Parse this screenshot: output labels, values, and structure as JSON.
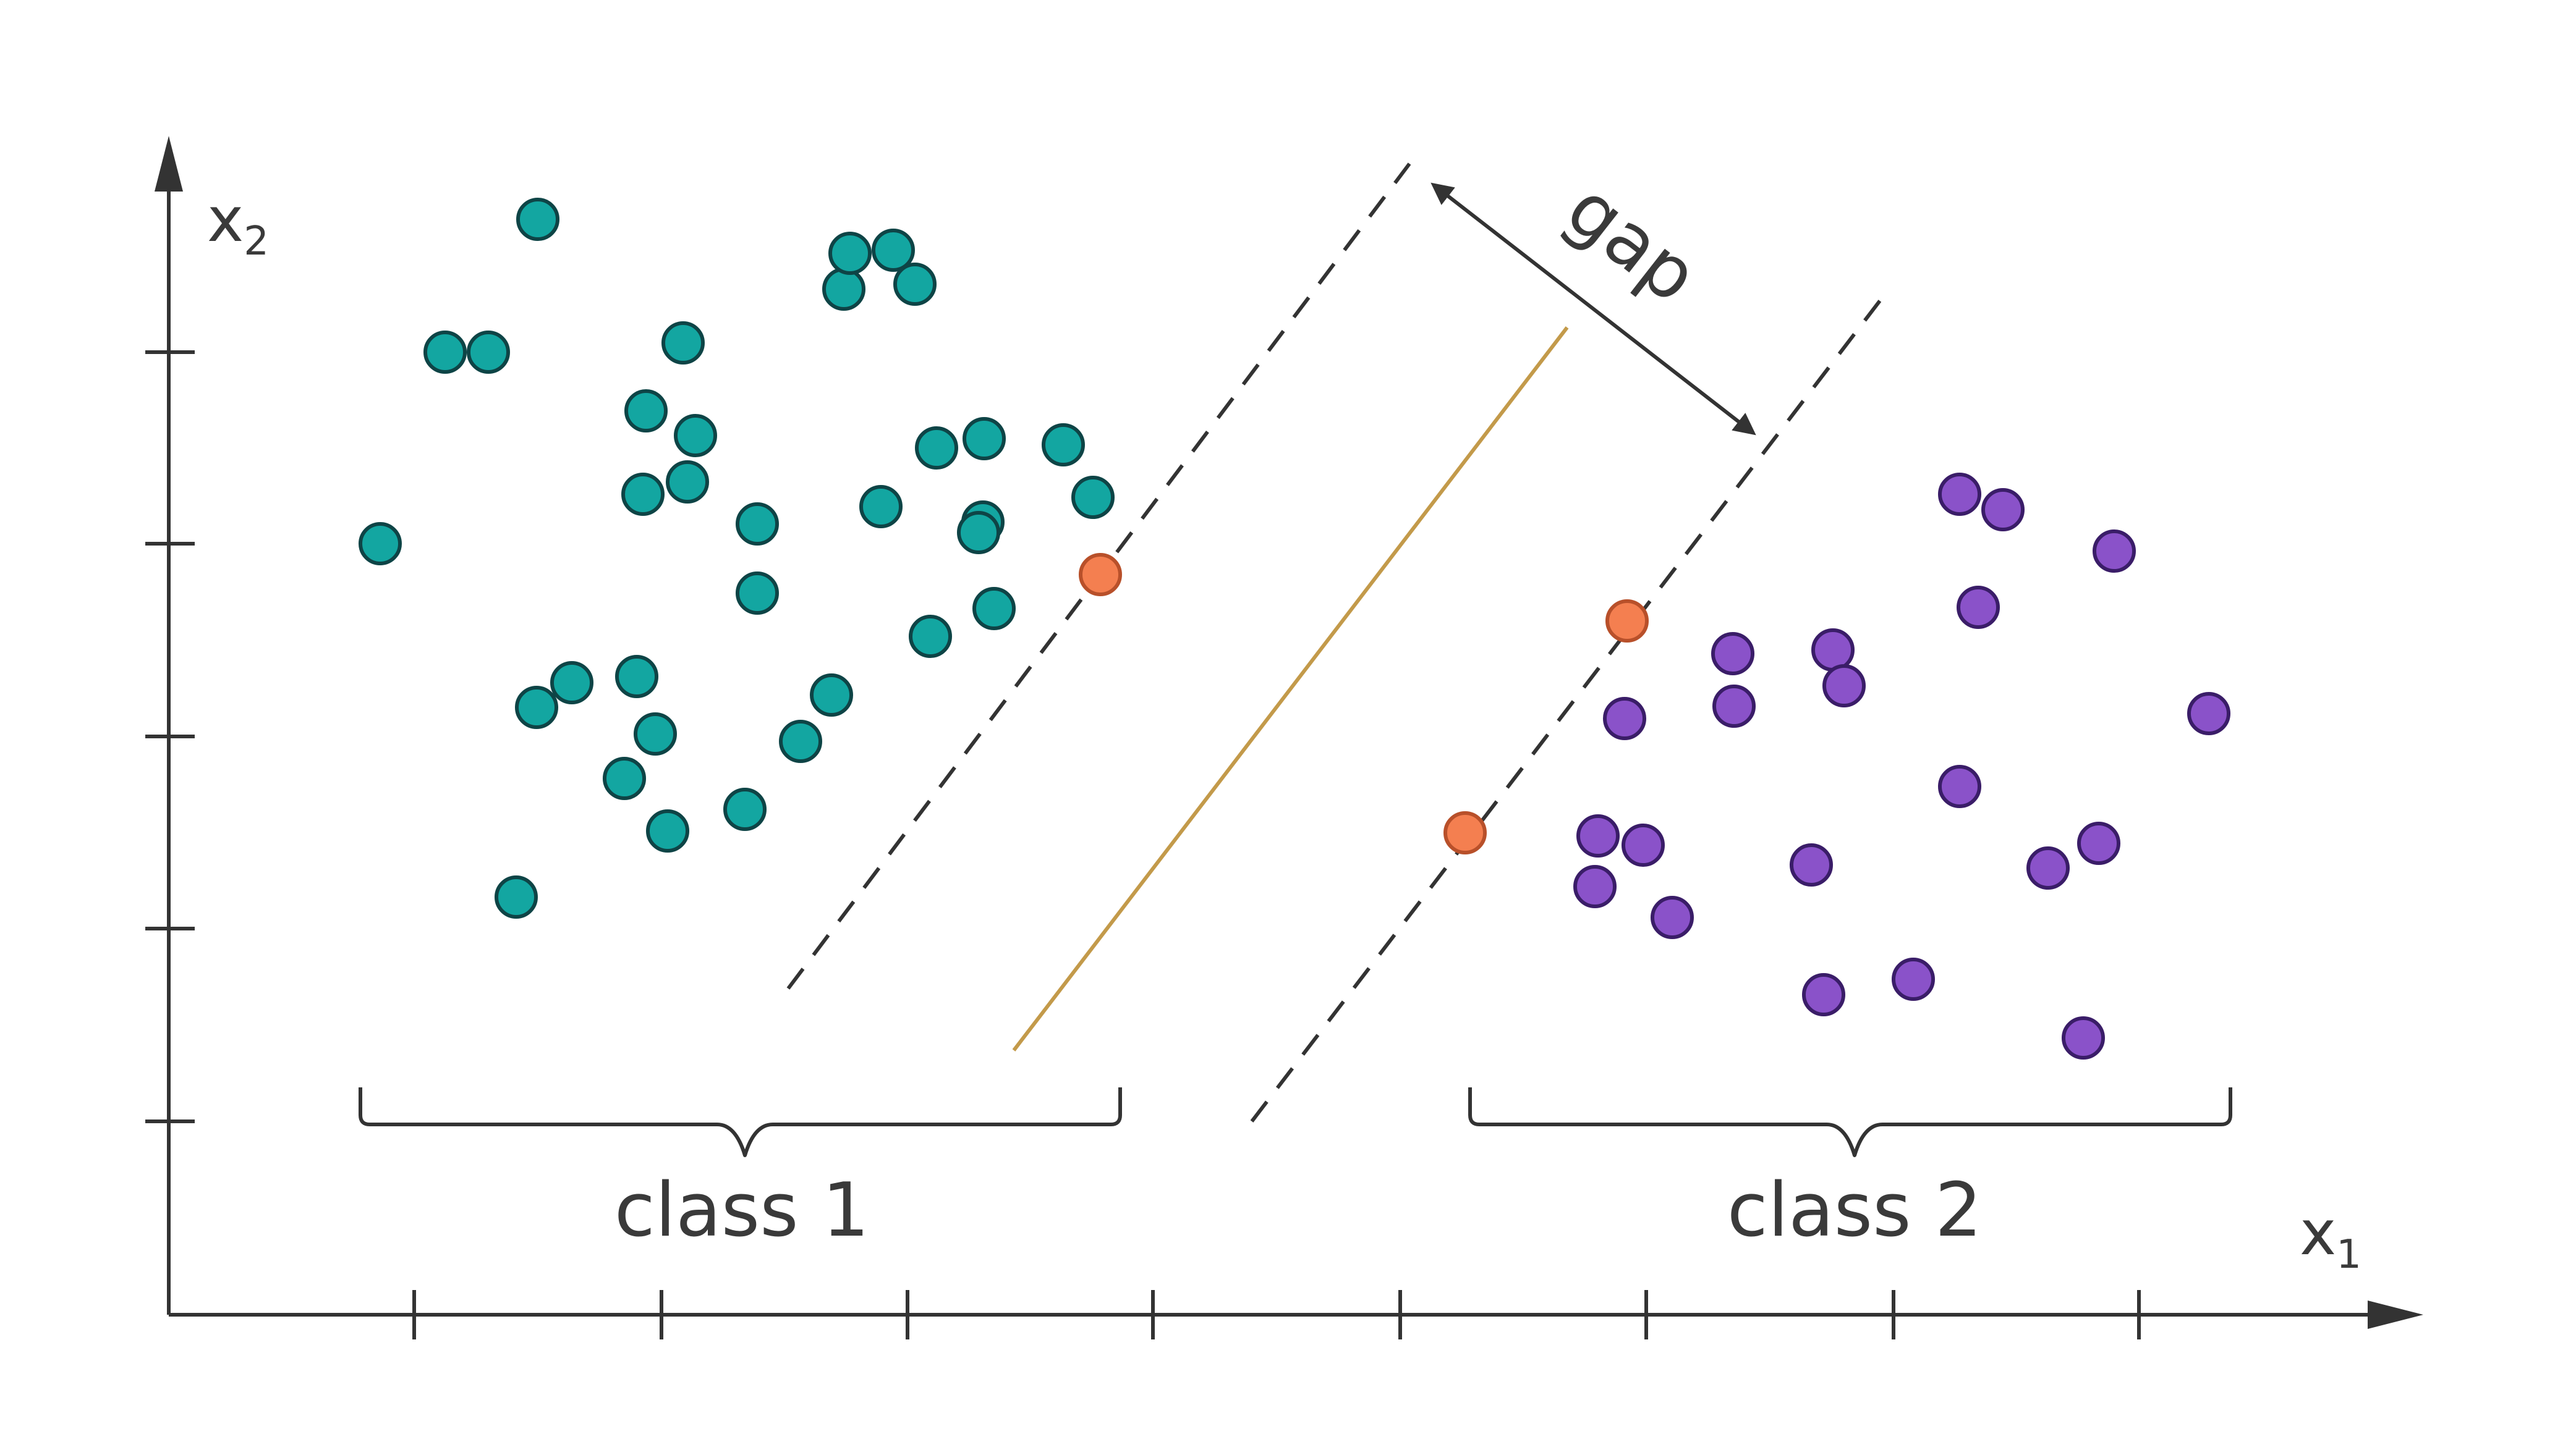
{
  "labels": {
    "x_axis": "x",
    "x_axis_sub": "1",
    "y_axis": "x",
    "y_axis_sub": "2",
    "gap": "gap",
    "class1": "class 1",
    "class2": "class 2"
  },
  "colors": {
    "class1": "#13A6A1",
    "class1_stroke": "#0E4446",
    "class2": "#8A52C9",
    "class2_stroke": "#3A1D68",
    "support_vector": "#F47F50",
    "support_vector_stroke": "#B8502A",
    "boundary": "#C39A4A",
    "axis": "#333333"
  },
  "points": {
    "class1": [
      [
        870,
        355
      ],
      [
        1365,
        468
      ],
      [
        1375,
        410
      ],
      [
        1445,
        405
      ],
      [
        1480,
        460
      ],
      [
        720,
        570
      ],
      [
        790,
        570
      ],
      [
        1105,
        555
      ],
      [
        1045,
        665
      ],
      [
        1125,
        705
      ],
      [
        1040,
        800
      ],
      [
        1112,
        780
      ],
      [
        1225,
        848
      ],
      [
        1225,
        960
      ],
      [
        1425,
        820
      ],
      [
        1590,
        845
      ],
      [
        1515,
        725
      ],
      [
        1592,
        710
      ],
      [
        1720,
        720
      ],
      [
        1768,
        805
      ],
      [
        1583,
        862
      ],
      [
        1608,
        985
      ],
      [
        1505,
        1030
      ],
      [
        615,
        880
      ],
      [
        1345,
        1125
      ],
      [
        1295,
        1200
      ],
      [
        1205,
        1310
      ],
      [
        1080,
        1345
      ],
      [
        1060,
        1188
      ],
      [
        1030,
        1095
      ],
      [
        925,
        1105
      ],
      [
        868,
        1145
      ],
      [
        1010,
        1260
      ],
      [
        835,
        1452
      ]
    ],
    "class2": [
      [
        3170,
        800
      ],
      [
        3240,
        825
      ],
      [
        3420,
        892
      ],
      [
        3200,
        983
      ],
      [
        2803,
        1058
      ],
      [
        2965,
        1052
      ],
      [
        2983,
        1110
      ],
      [
        2805,
        1143
      ],
      [
        2628,
        1163
      ],
      [
        3573,
        1155
      ],
      [
        3170,
        1273
      ],
      [
        2585,
        1353
      ],
      [
        2658,
        1368
      ],
      [
        2580,
        1435
      ],
      [
        2705,
        1485
      ],
      [
        2930,
        1400
      ],
      [
        3313,
        1405
      ],
      [
        3395,
        1365
      ],
      [
        2950,
        1610
      ],
      [
        3095,
        1585
      ],
      [
        3370,
        1680
      ]
    ],
    "support_vectors": [
      [
        1780,
        930
      ],
      [
        2632,
        1005
      ],
      [
        2370,
        1348
      ]
    ]
  }
}
